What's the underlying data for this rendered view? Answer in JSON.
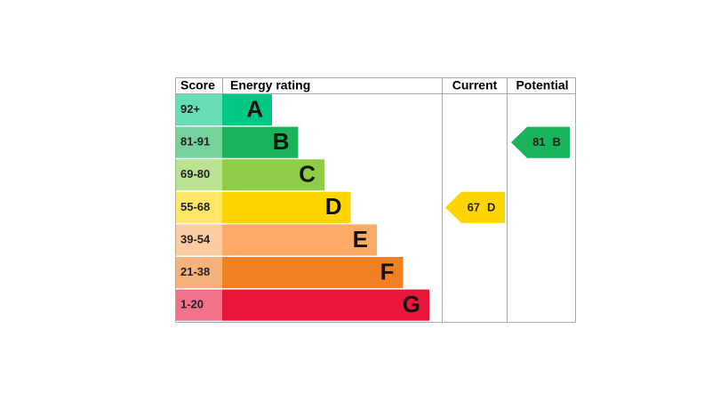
{
  "header": {
    "score": "Score",
    "energy_rating": "Energy rating",
    "current": "Current",
    "potential": "Potential"
  },
  "bands": [
    {
      "score": "92+",
      "letter": "A",
      "color": "#00c781"
    },
    {
      "score": "81-91",
      "letter": "B",
      "color": "#19b459"
    },
    {
      "score": "69-80",
      "letter": "C",
      "color": "#8dce46"
    },
    {
      "score": "55-68",
      "letter": "D",
      "color": "#ffd500"
    },
    {
      "score": "39-54",
      "letter": "E",
      "color": "#fcaa65"
    },
    {
      "score": "21-38",
      "letter": "F",
      "color": "#ef8023"
    },
    {
      "score": "1-20",
      "letter": "G",
      "color": "#e9153b"
    }
  ],
  "current": {
    "value": 67,
    "letter": "D"
  },
  "potential": {
    "value": 81,
    "letter": "B"
  }
}
